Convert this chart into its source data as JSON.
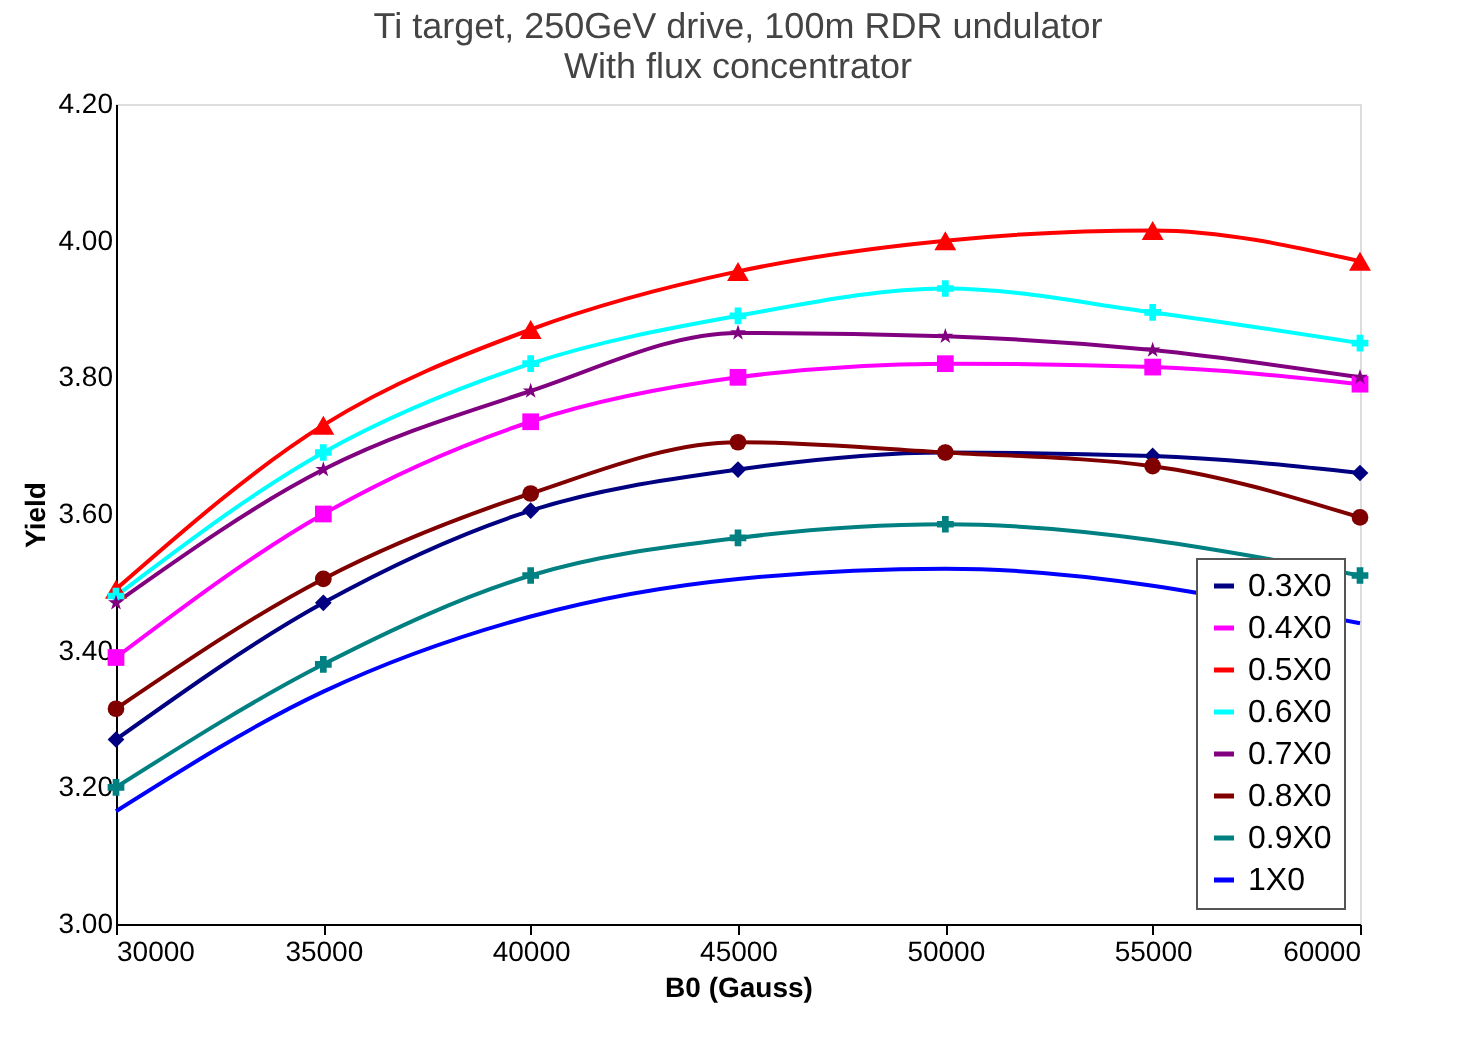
{
  "chart_data": {
    "type": "line",
    "title": "Ti target, 250GeV drive, 100m RDR undulator\nWith flux concentrator",
    "xlabel": "B0 (Gauss)",
    "ylabel": "Yield",
    "x": [
      30000,
      35000,
      40000,
      45000,
      50000,
      55000,
      60000
    ],
    "xlim": [
      30000,
      60000
    ],
    "xticks": [
      30000,
      35000,
      40000,
      45000,
      50000,
      55000,
      60000
    ],
    "ylim": [
      3.0,
      4.2
    ],
    "yticks": [
      {
        "value": 3.0,
        "label": "3.00"
      },
      {
        "value": 3.2,
        "label": "3.20"
      },
      {
        "value": 3.4,
        "label": "3.40"
      },
      {
        "value": 3.6,
        "label": "3.60"
      },
      {
        "value": 3.8,
        "label": "3.80"
      },
      {
        "value": 4.0,
        "label": "4.00"
      },
      {
        "value": 4.2,
        "label": "4.20"
      }
    ],
    "grid": false,
    "legend": "bottom right",
    "series": [
      {
        "name": "0.3X0",
        "color": "#000080",
        "marker": "diamond",
        "values": [
          3.27,
          3.47,
          3.605,
          3.665,
          3.69,
          3.685,
          3.66
        ]
      },
      {
        "name": "0.4X0",
        "color": "#ff00ff",
        "marker": "square",
        "values": [
          3.39,
          3.6,
          3.735,
          3.8,
          3.82,
          3.815,
          3.79
        ]
      },
      {
        "name": "0.5X0",
        "color": "#ff0000",
        "marker": "triangle",
        "values": [
          3.49,
          3.73,
          3.87,
          3.955,
          4.0,
          4.015,
          3.97
        ]
      },
      {
        "name": "0.6X0",
        "color": "#00ffff",
        "marker": "cross",
        "values": [
          3.48,
          3.69,
          3.82,
          3.89,
          3.93,
          3.895,
          3.85
        ]
      },
      {
        "name": "0.7X0",
        "color": "#800080",
        "marker": "star",
        "values": [
          3.47,
          3.665,
          3.78,
          3.865,
          3.86,
          3.84,
          3.8
        ]
      },
      {
        "name": "0.8X0",
        "color": "#800000",
        "marker": "circle",
        "values": [
          3.315,
          3.505,
          3.63,
          3.705,
          3.69,
          3.67,
          3.595
        ]
      },
      {
        "name": "0.9X0",
        "color": "#008080",
        "marker": "cross",
        "values": [
          3.2,
          3.38,
          3.51,
          3.565,
          3.585,
          null,
          3.51
        ]
      },
      {
        "name": "1X0",
        "color": "#0000ff",
        "marker": "none",
        "values": [
          3.165,
          3.34,
          3.45,
          3.505,
          3.52,
          null,
          3.44
        ]
      }
    ]
  }
}
